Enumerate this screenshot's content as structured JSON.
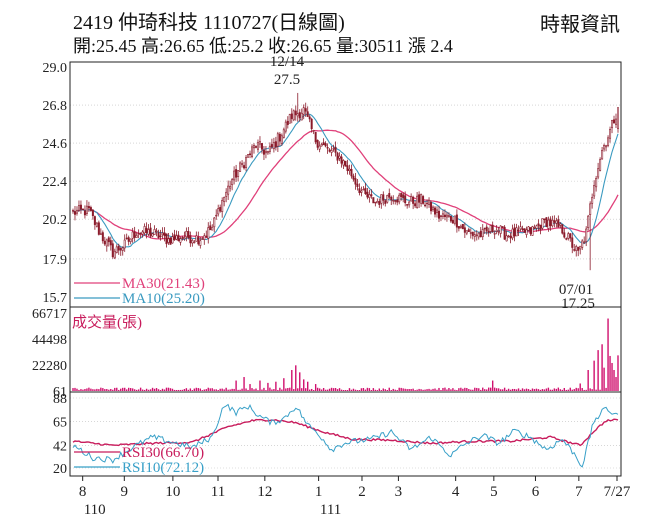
{
  "header": {
    "title": "2419  仲琦科技 1110727(日線圖)",
    "source": "時報資訊",
    "quote": "開:25.45 高:26.65 低:25.2 收:26.65 量:30511 漲 2.4"
  },
  "colors": {
    "ma30": "#e0407a",
    "ma10": "#3a9ac0",
    "candle": "#8a1a2a",
    "volume": "#d0106e",
    "rsi30": "#c81c5c",
    "rsi10": "#38a0c8",
    "axis": "#222222",
    "grid": "#bfbfbf"
  },
  "chart_data": [
    {
      "type": "candlestick",
      "panel": "price",
      "ylim": [
        15.7,
        29.0
      ],
      "y_ticks": [
        "29.0",
        "26.8",
        "24.6",
        "22.4",
        "20.2",
        "17.9",
        "15.7"
      ],
      "y_tick_values": [
        29.0,
        26.8,
        24.6,
        22.4,
        20.2,
        17.9,
        15.7
      ],
      "annotations": [
        {
          "date": "12/14",
          "value": "27.5",
          "kind": "high"
        },
        {
          "date": "07/01",
          "value": "17.25",
          "kind": "low"
        }
      ],
      "legend": [
        {
          "label": "MA30(21.43)",
          "series": "ma30"
        },
        {
          "label": "MA10(25.20)",
          "series": "ma10"
        }
      ],
      "anchors": [
        [
          0,
          20.6
        ],
        [
          8,
          20.7
        ],
        [
          14,
          19.3
        ],
        [
          20,
          18.3
        ],
        [
          26,
          18.7
        ],
        [
          32,
          19.5
        ],
        [
          40,
          19.4
        ],
        [
          48,
          19.0
        ],
        [
          56,
          19.2
        ],
        [
          64,
          19.1
        ],
        [
          70,
          19.7
        ],
        [
          74,
          21.0
        ],
        [
          80,
          22.5
        ],
        [
          86,
          23.5
        ],
        [
          92,
          24.5
        ],
        [
          98,
          24.0
        ],
        [
          104,
          25.0
        ],
        [
          110,
          26.2
        ],
        [
          116,
          26.5
        ],
        [
          122,
          24.8
        ],
        [
          128,
          24.2
        ],
        [
          134,
          23.8
        ],
        [
          140,
          22.8
        ],
        [
          146,
          21.6
        ],
        [
          152,
          21.2
        ],
        [
          160,
          21.6
        ],
        [
          168,
          21.2
        ],
        [
          176,
          21.3
        ],
        [
          184,
          20.4
        ],
        [
          192,
          20.2
        ],
        [
          198,
          19.4
        ],
        [
          206,
          19.3
        ],
        [
          212,
          19.7
        ],
        [
          218,
          19.3
        ],
        [
          224,
          19.4
        ],
        [
          230,
          19.5
        ],
        [
          238,
          20.1
        ],
        [
          246,
          19.6
        ],
        [
          250,
          18.9
        ],
        [
          254,
          18.2
        ],
        [
          258,
          19.4
        ],
        [
          262,
          22.4
        ],
        [
          266,
          24.2
        ],
        [
          270,
          25.3
        ],
        [
          274,
          26.65
        ]
      ],
      "n_days": 275
    },
    {
      "type": "bar",
      "panel": "volume",
      "title": "成交量(張)",
      "ylim": [
        61,
        66717
      ],
      "y_ticks": [
        "66717",
        "44498",
        "22280",
        "61"
      ],
      "y_tick_values": [
        66717,
        44498,
        22280,
        61
      ],
      "spikes": [
        [
          82,
          9000
        ],
        [
          86,
          12000
        ],
        [
          89,
          6000
        ],
        [
          94,
          9000
        ],
        [
          98,
          7000
        ],
        [
          102,
          8000
        ],
        [
          106,
          11000
        ],
        [
          110,
          18000
        ],
        [
          112,
          22000
        ],
        [
          114,
          16000
        ],
        [
          116,
          10000
        ],
        [
          118,
          8000
        ],
        [
          122,
          6000
        ],
        [
          211,
          9000
        ],
        [
          255,
          6500
        ],
        [
          259,
          18000
        ],
        [
          262,
          26000
        ],
        [
          264,
          35000
        ],
        [
          266,
          40000
        ],
        [
          267,
          20000
        ],
        [
          269,
          62000
        ],
        [
          270,
          30000
        ],
        [
          271,
          24000
        ],
        [
          272,
          18000
        ],
        [
          273,
          12000
        ],
        [
          274,
          30511
        ]
      ]
    },
    {
      "type": "line",
      "panel": "rsi",
      "ylim": [
        20,
        88
      ],
      "y_ticks": [
        "88",
        "65",
        "42",
        "20"
      ],
      "y_tick_values": [
        88,
        65,
        42,
        20
      ],
      "series": [
        {
          "name": "RSI30(66.70)",
          "key": "rsi30",
          "anchors": [
            [
              0,
              46
            ],
            [
              20,
              42
            ],
            [
              40,
              44
            ],
            [
              60,
              45
            ],
            [
              78,
              60
            ],
            [
              90,
              66
            ],
            [
              100,
              67
            ],
            [
              112,
              64
            ],
            [
              126,
              55
            ],
            [
              140,
              48
            ],
            [
              160,
              47
            ],
            [
              180,
              44
            ],
            [
              200,
              46
            ],
            [
              220,
              46
            ],
            [
              240,
              50
            ],
            [
              255,
              42
            ],
            [
              262,
              56
            ],
            [
              268,
              66
            ],
            [
              274,
              66.7
            ]
          ]
        },
        {
          "name": "RSI10(72.12)",
          "key": "rsi10",
          "anchors": [
            [
              0,
              42
            ],
            [
              10,
              30
            ],
            [
              20,
              28
            ],
            [
              30,
              40
            ],
            [
              40,
              50
            ],
            [
              50,
              45
            ],
            [
              60,
              40
            ],
            [
              70,
              50
            ],
            [
              76,
              82
            ],
            [
              82,
              74
            ],
            [
              88,
              80
            ],
            [
              94,
              70
            ],
            [
              100,
              64
            ],
            [
              106,
              68
            ],
            [
              112,
              80
            ],
            [
              118,
              62
            ],
            [
              124,
              52
            ],
            [
              130,
              38
            ],
            [
              136,
              44
            ],
            [
              142,
              46
            ],
            [
              150,
              48
            ],
            [
              160,
              55
            ],
            [
              170,
              38
            ],
            [
              180,
              50
            ],
            [
              190,
              32
            ],
            [
              196,
              42
            ],
            [
              206,
              52
            ],
            [
              214,
              44
            ],
            [
              222,
              56
            ],
            [
              230,
              50
            ],
            [
              238,
              38
            ],
            [
              246,
              48
            ],
            [
              252,
              34
            ],
            [
              256,
              22
            ],
            [
              262,
              66
            ],
            [
              268,
              78
            ],
            [
              271,
              74
            ],
            [
              274,
              72.12
            ]
          ]
        }
      ]
    }
  ],
  "x_axis": {
    "ticks": [
      {
        "day": 5,
        "month": "8",
        "year": "110"
      },
      {
        "day": 29,
        "month": "9",
        "year": ""
      },
      {
        "day": 57,
        "month": "10",
        "year": ""
      },
      {
        "day": 83,
        "month": "11",
        "year": ""
      },
      {
        "day": 110,
        "month": "12",
        "year": ""
      },
      {
        "day": 141,
        "month": "1",
        "year": "111"
      },
      {
        "day": 166,
        "month": "2",
        "year": ""
      },
      {
        "day": 187,
        "month": "3",
        "year": ""
      },
      {
        "day": 220,
        "month": "4",
        "year": ""
      },
      {
        "day": 242,
        "month": "5",
        "year": ""
      },
      {
        "day": 266,
        "month": "6",
        "year": ""
      },
      {
        "day": 291,
        "month": "7",
        "year": ""
      },
      {
        "day": 313,
        "month": "7/27",
        "year": ""
      }
    ]
  }
}
